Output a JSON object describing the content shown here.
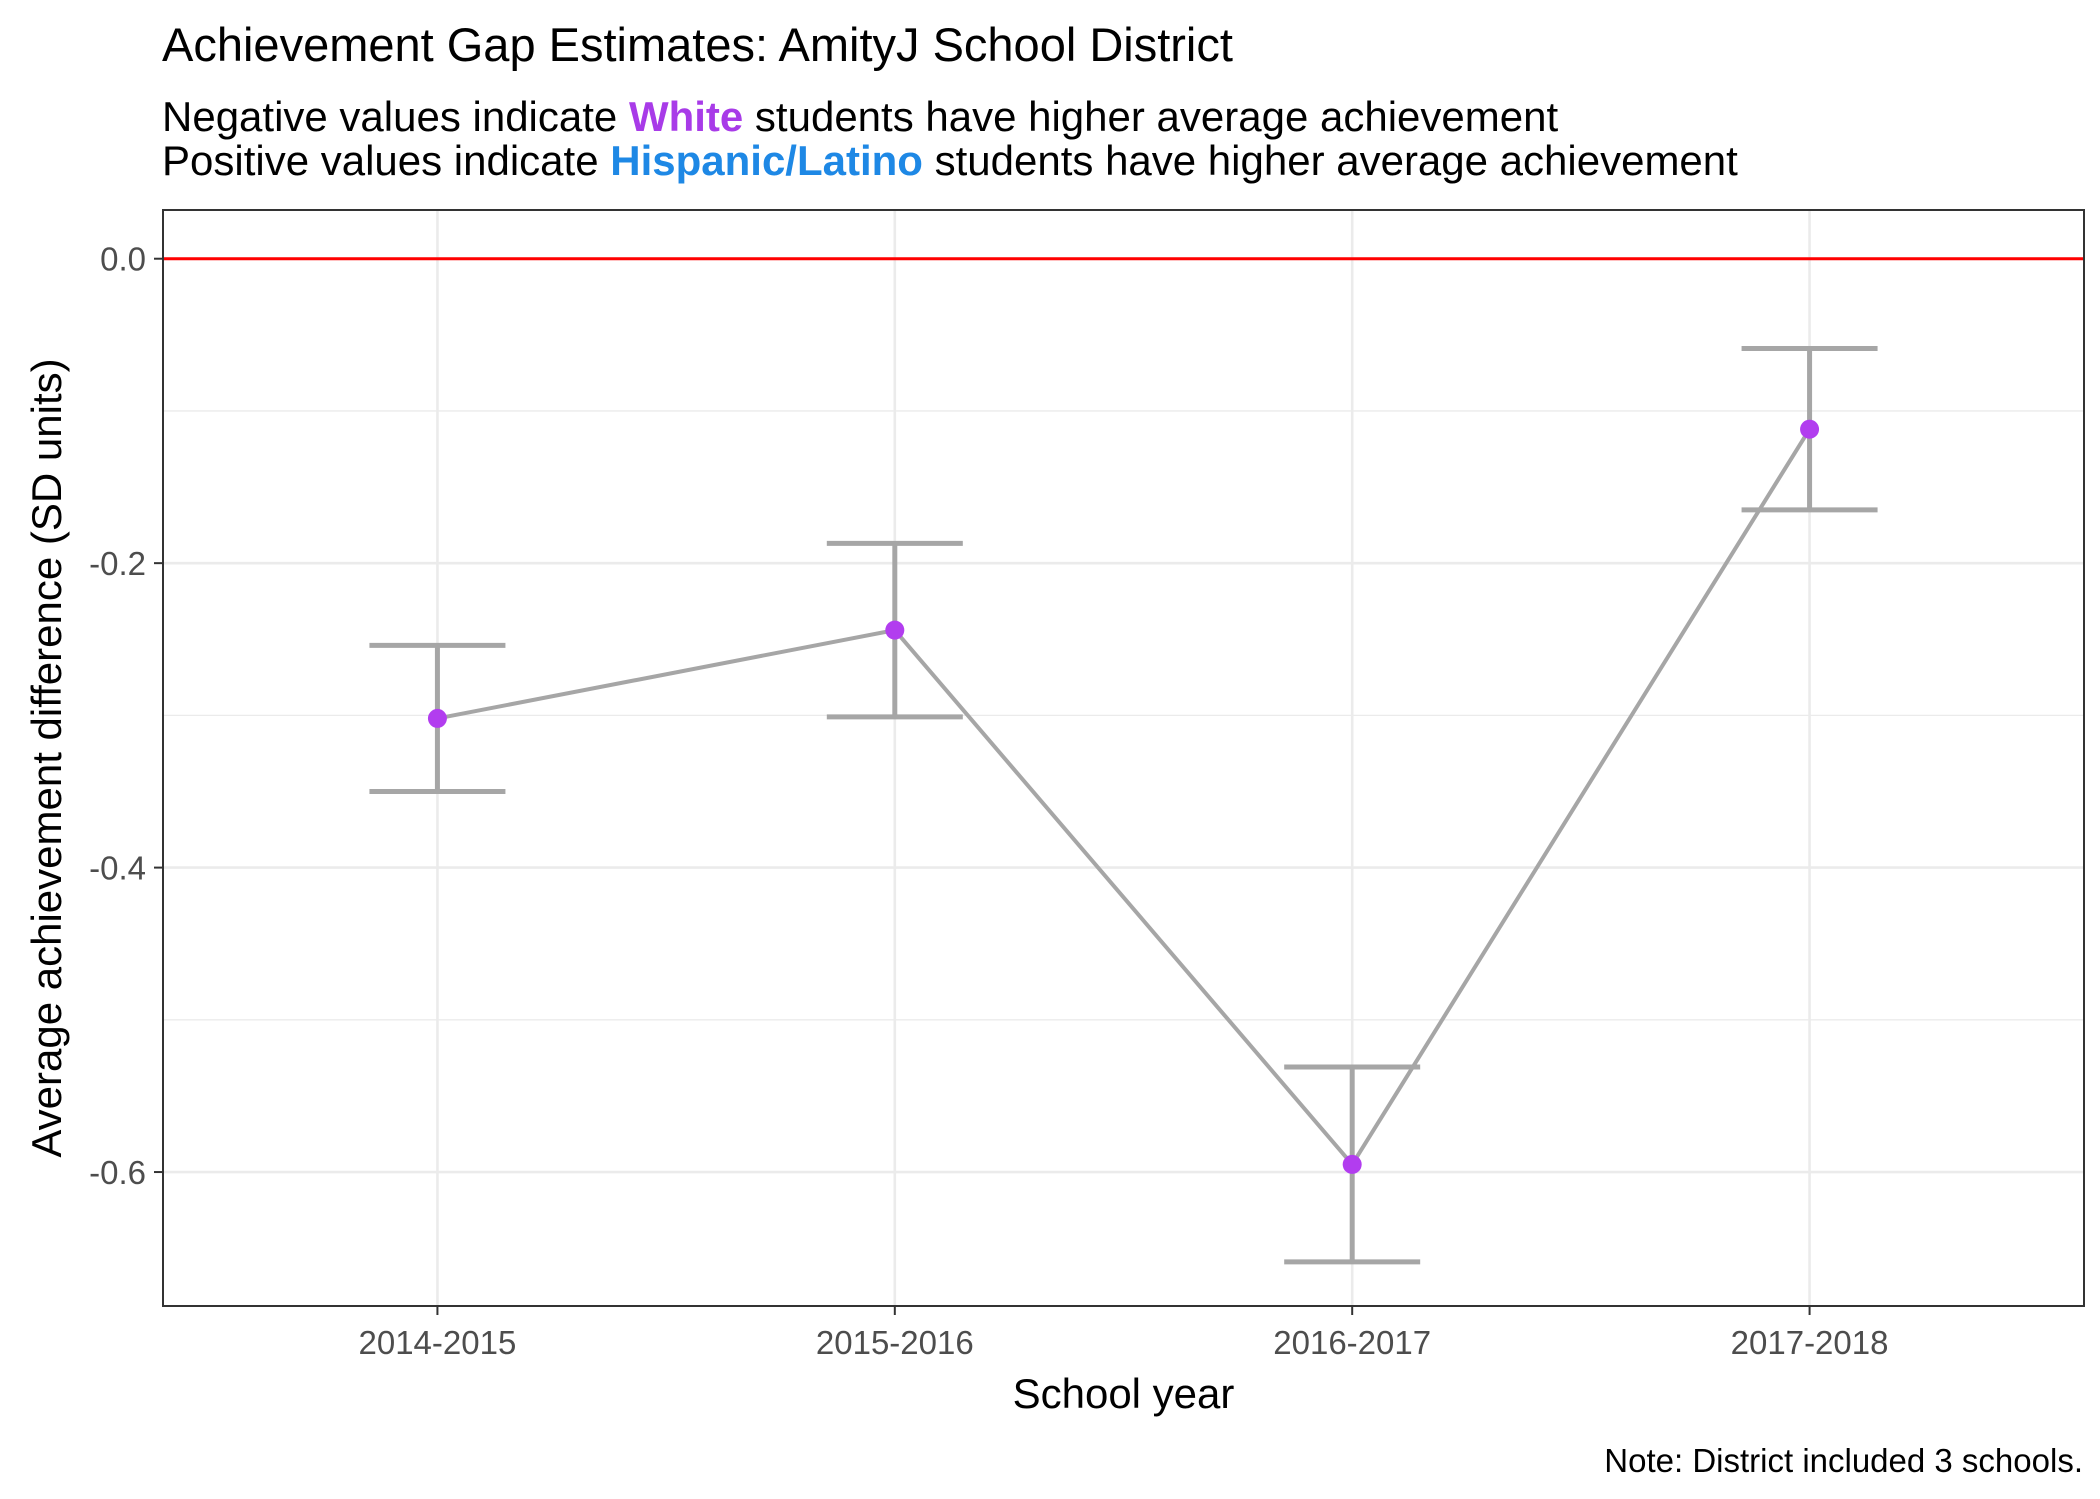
{
  "chart_data": {
    "type": "line",
    "title": "Achievement Gap Estimates: AmityJ School District",
    "subtitle": {
      "line1": {
        "prefix": "Negative values indicate ",
        "group": "White",
        "suffix": " students have higher average achievement"
      },
      "line2": {
        "prefix": "Positive values indicate ",
        "group": "Hispanic/Latino",
        "suffix": " students have higher average achievement"
      }
    },
    "xlabel": "School year",
    "ylabel": "Average achievement difference (SD units)",
    "categories": [
      "2014-2015",
      "2015-2016",
      "2016-2017",
      "2017-2018"
    ],
    "values": [
      -0.302,
      -0.244,
      -0.595,
      -0.112
    ],
    "ci_upper": [
      -0.254,
      -0.187,
      -0.531,
      -0.059
    ],
    "ci_lower": [
      -0.35,
      -0.301,
      -0.659,
      -0.165
    ],
    "ylim": [
      -0.688,
      0.032
    ],
    "yticks": [
      0.0,
      -0.2,
      -0.4,
      -0.6
    ],
    "ytick_labels": [
      "0.0",
      "-0.2",
      "-0.4",
      "-0.6"
    ],
    "reference_line": 0.0,
    "note": "Note: District included 3 schools.",
    "colors": {
      "white_group": "#A83BE8",
      "hispanic_group": "#1E88E5",
      "point": "#B23DEF",
      "line": "#A6A6A6",
      "reference": "#FF0000",
      "grid": "#EBEBEB",
      "panel_border": "#333333"
    }
  }
}
